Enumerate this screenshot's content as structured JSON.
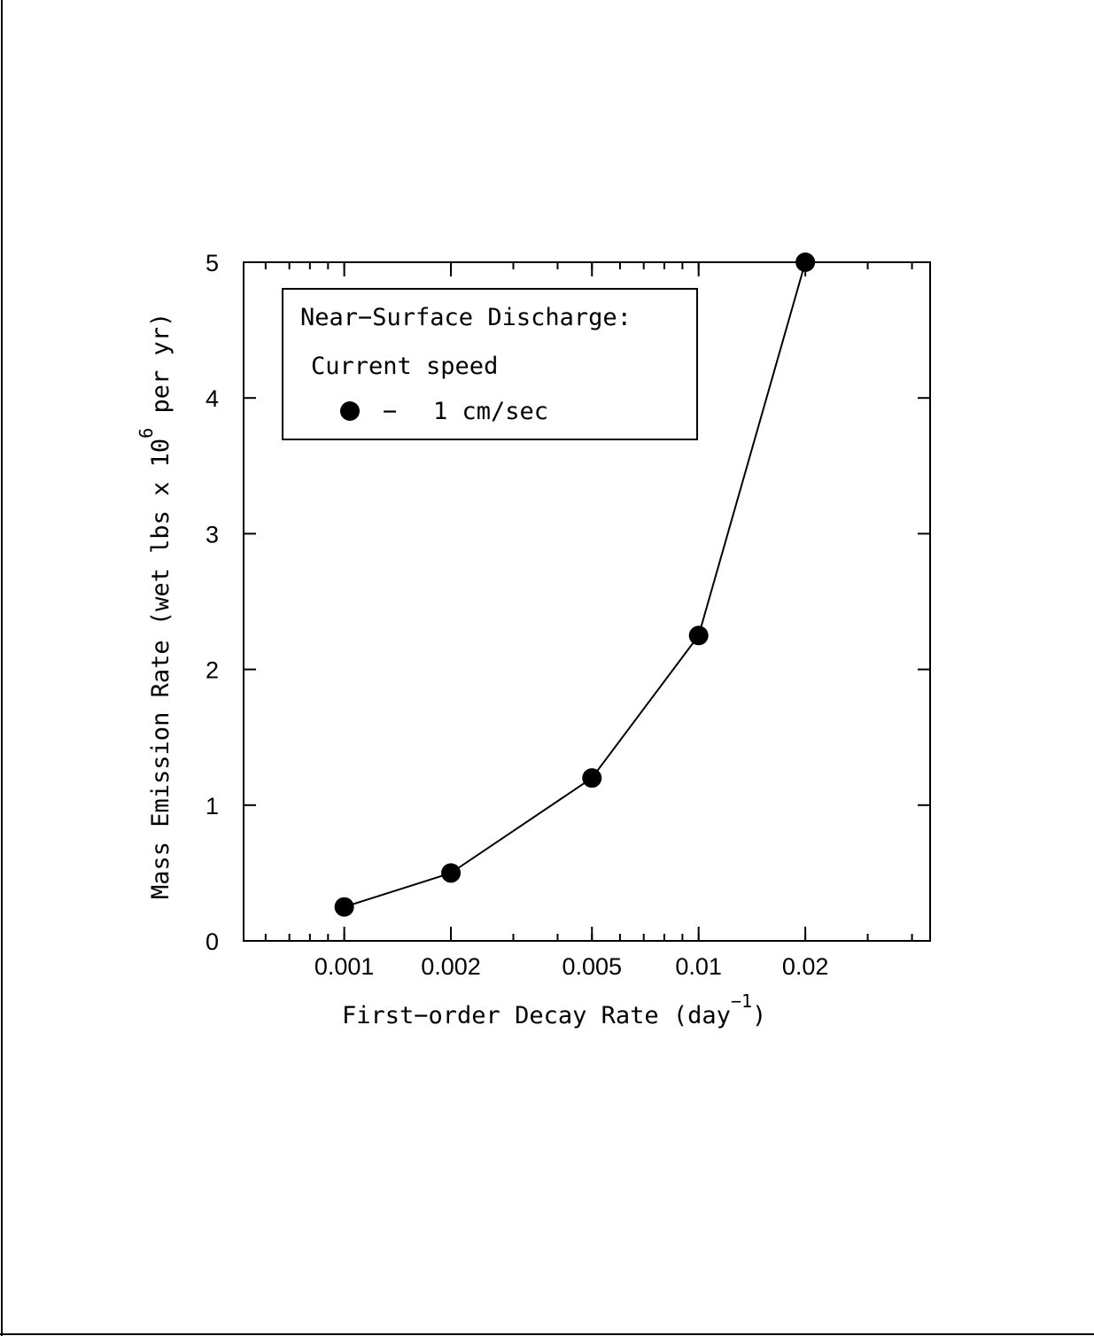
{
  "chart_data": {
    "type": "line",
    "xscale": "log",
    "xlabel": "First−order Decay Rate (day",
    "xlabel_sup": "−1",
    "xlabel_close": ")",
    "ylabel": "Mass Emission Rate (wet lbs x 10",
    "ylabel_sup": "6",
    "ylabel_close": " per yr)",
    "xlim": [
      0.00052,
      0.045
    ],
    "ylim": [
      0,
      5
    ],
    "x_ticks": [
      {
        "value": 0.001,
        "label": "0.001"
      },
      {
        "value": 0.002,
        "label": "0.002"
      },
      {
        "value": 0.005,
        "label": "0.005"
      },
      {
        "value": 0.01,
        "label": "0.01"
      },
      {
        "value": 0.02,
        "label": "0.02"
      }
    ],
    "y_ticks": [
      {
        "value": 0,
        "label": "0"
      },
      {
        "value": 1,
        "label": "1"
      },
      {
        "value": 2,
        "label": "2"
      },
      {
        "value": 3,
        "label": "3"
      },
      {
        "value": 4,
        "label": "4"
      },
      {
        "value": 5,
        "label": "5"
      }
    ],
    "grid": false,
    "legend": {
      "title": "Near−Surface Discharge:",
      "subtitle": "Current speed",
      "entry_symbol": "●",
      "entry_dash": "−",
      "entry_label": "1 cm/sec",
      "position": "top-left"
    },
    "series": [
      {
        "name": "1 cm/sec",
        "x": [
          0.001,
          0.002,
          0.005,
          0.01,
          0.02
        ],
        "y": [
          0.25,
          0.5,
          1.2,
          2.25,
          5.0
        ]
      }
    ]
  }
}
